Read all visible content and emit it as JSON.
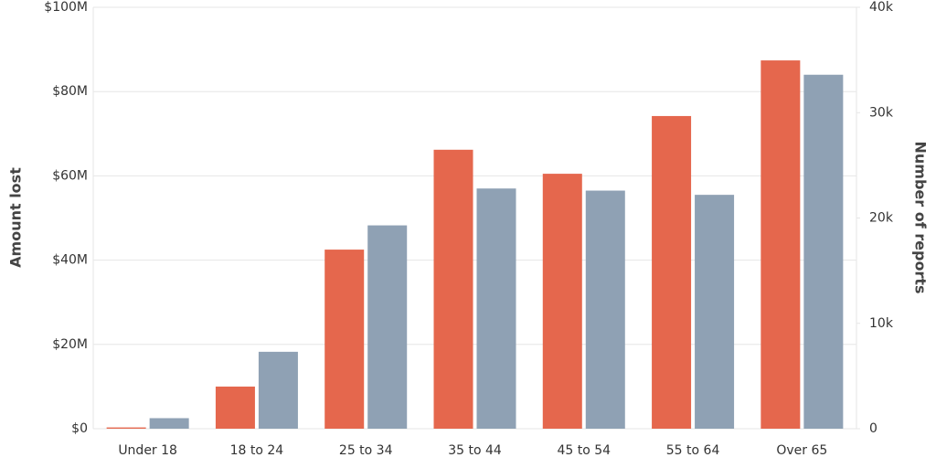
{
  "chart_data": {
    "type": "bar",
    "categories": [
      "Under 18",
      "18 to 24",
      "25 to 34",
      "35 to 44",
      "45 to 54",
      "55 to 64",
      "Over 65"
    ],
    "y_label": "Amount lost",
    "y2_label": "Number of reports",
    "series": [
      {
        "color": "#e5674d",
        "values": [
          300000,
          10000000,
          42500000,
          66200000,
          60500000,
          74200000,
          87400000
        ]
      },
      {
        "color": "#8fa1b4",
        "axis": "y2",
        "values": [
          1000,
          7300,
          19300,
          22800,
          22600,
          22200,
          33600
        ]
      }
    ],
    "ylim": [
      0,
      100000000
    ],
    "yticks": [
      {
        "value": 0,
        "label": "$0"
      },
      {
        "value": 20000000,
        "label": "$20M"
      },
      {
        "value": 40000000,
        "label": "$40M"
      },
      {
        "value": 60000000,
        "label": "$60M"
      },
      {
        "value": 80000000,
        "label": "$80M"
      },
      {
        "value": 100000000,
        "label": "$100M"
      }
    ],
    "y2lim": [
      0,
      40000
    ],
    "y2ticks": [
      0,
      {
        "value": 10000,
        "label": "10k"
      },
      {
        "value": 20000,
        "label": "20k"
      },
      {
        "value": 30000,
        "label": "30k"
      },
      {
        "value": 40000,
        "label": "40k"
      }
    ],
    "grid": true
  }
}
